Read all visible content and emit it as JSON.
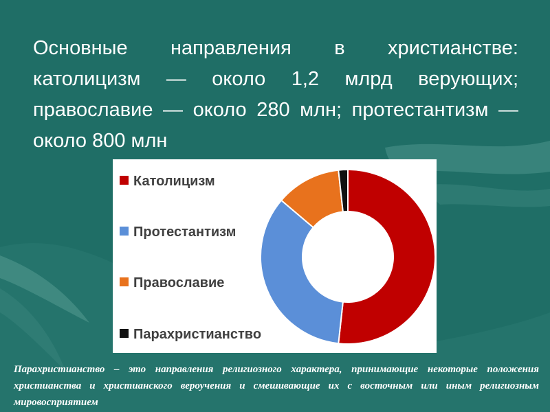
{
  "slide": {
    "heading": "Основные направления в христианстве: католицизм — около 1,2 млрд верующих; православие — около 280 млн; протестантизм — около 800 млн",
    "note": "Парахристианство – это направления религиозного характера, принимающие некоторые положения христианства и христианского вероучения и смешивающие их с восточным или иным религиозным мировосприятием"
  },
  "colors": {
    "background": "#1f6e66",
    "card": "#ffffff",
    "legend_text": "#404040"
  },
  "chart_data": {
    "type": "pie",
    "variant": "doughnut",
    "title": "",
    "legend_position": "left",
    "series": [
      {
        "name": "Католицизм",
        "value": 1.2,
        "unit": "млрд",
        "color": "#c00000"
      },
      {
        "name": "Протестантизм",
        "value": 0.8,
        "unit": "млрд",
        "color": "#5b8fd8"
      },
      {
        "name": "Православие",
        "value": 0.28,
        "unit": "млрд",
        "color": "#e8721d"
      },
      {
        "name": "Парахристианство",
        "value": 0.04,
        "unit": "млрд",
        "color": "#111111"
      }
    ]
  }
}
